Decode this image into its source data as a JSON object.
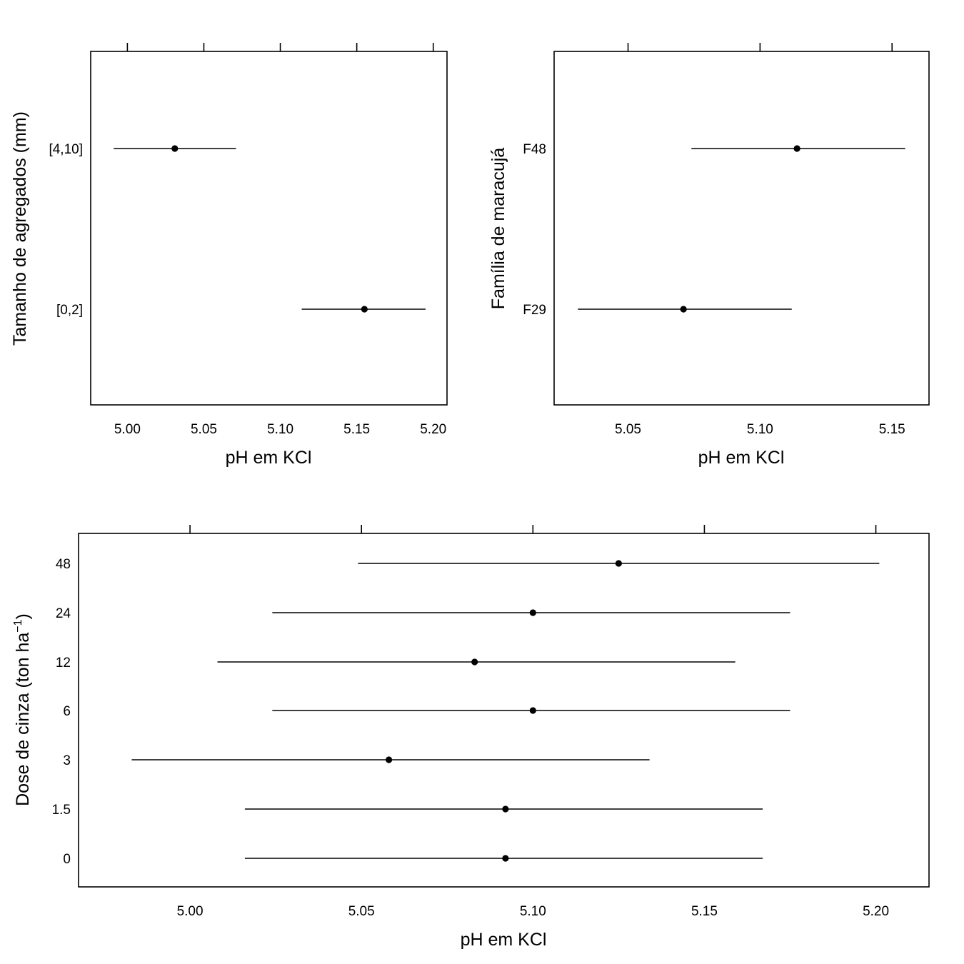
{
  "chart_data": [
    {
      "type": "scatter",
      "xlabel": "pH em KCl",
      "ylabel": "Tamanho de agregados (mm)",
      "xlim": [
        4.976,
        5.209
      ],
      "xticks": [
        "5.00",
        "5.05",
        "5.10",
        "5.15",
        "5.20"
      ],
      "categories": [
        "[0,2]",
        "[4,10]"
      ],
      "series": [
        {
          "category": "[4,10]",
          "estimate": 5.031,
          "lower": 4.991,
          "upper": 5.071
        },
        {
          "category": "[0,2]",
          "estimate": 5.155,
          "lower": 5.114,
          "upper": 5.195
        }
      ],
      "grid": false,
      "legend": "none"
    },
    {
      "type": "scatter",
      "xlabel": "pH em KCl",
      "ylabel": "Família de maracujá",
      "xlim": [
        5.022,
        5.164
      ],
      "xticks": [
        "5.05",
        "5.10",
        "5.15"
      ],
      "categories": [
        "F29",
        "F48"
      ],
      "series": [
        {
          "category": "F48",
          "estimate": 5.114,
          "lower": 5.074,
          "upper": 5.155
        },
        {
          "category": "F29",
          "estimate": 5.071,
          "lower": 5.031,
          "upper": 5.112
        }
      ],
      "grid": false,
      "legend": "none"
    },
    {
      "type": "scatter",
      "xlabel": "pH em KCl",
      "ylabel": "Dose de cinza (ton ha",
      "ylabel_sup": "−1",
      "ylabel_end": ")",
      "xlim": [
        4.9675,
        5.2155
      ],
      "xticks": [
        "5.00",
        "5.05",
        "5.10",
        "5.15",
        "5.20"
      ],
      "categories": [
        "0",
        "1.5",
        "3",
        "6",
        "12",
        "24",
        "48"
      ],
      "series": [
        {
          "category": "48",
          "estimate": 5.125,
          "lower": 5.049,
          "upper": 5.201
        },
        {
          "category": "24",
          "estimate": 5.1,
          "lower": 5.024,
          "upper": 5.175
        },
        {
          "category": "12",
          "estimate": 5.083,
          "lower": 5.008,
          "upper": 5.159
        },
        {
          "category": "6",
          "estimate": 5.1,
          "lower": 5.024,
          "upper": 5.175
        },
        {
          "category": "3",
          "estimate": 5.058,
          "lower": 4.983,
          "upper": 5.134
        },
        {
          "category": "1.5",
          "estimate": 5.092,
          "lower": 5.016,
          "upper": 5.167
        },
        {
          "category": "0",
          "estimate": 5.092,
          "lower": 5.016,
          "upper": 5.167
        }
      ],
      "grid": false,
      "legend": "none"
    }
  ]
}
